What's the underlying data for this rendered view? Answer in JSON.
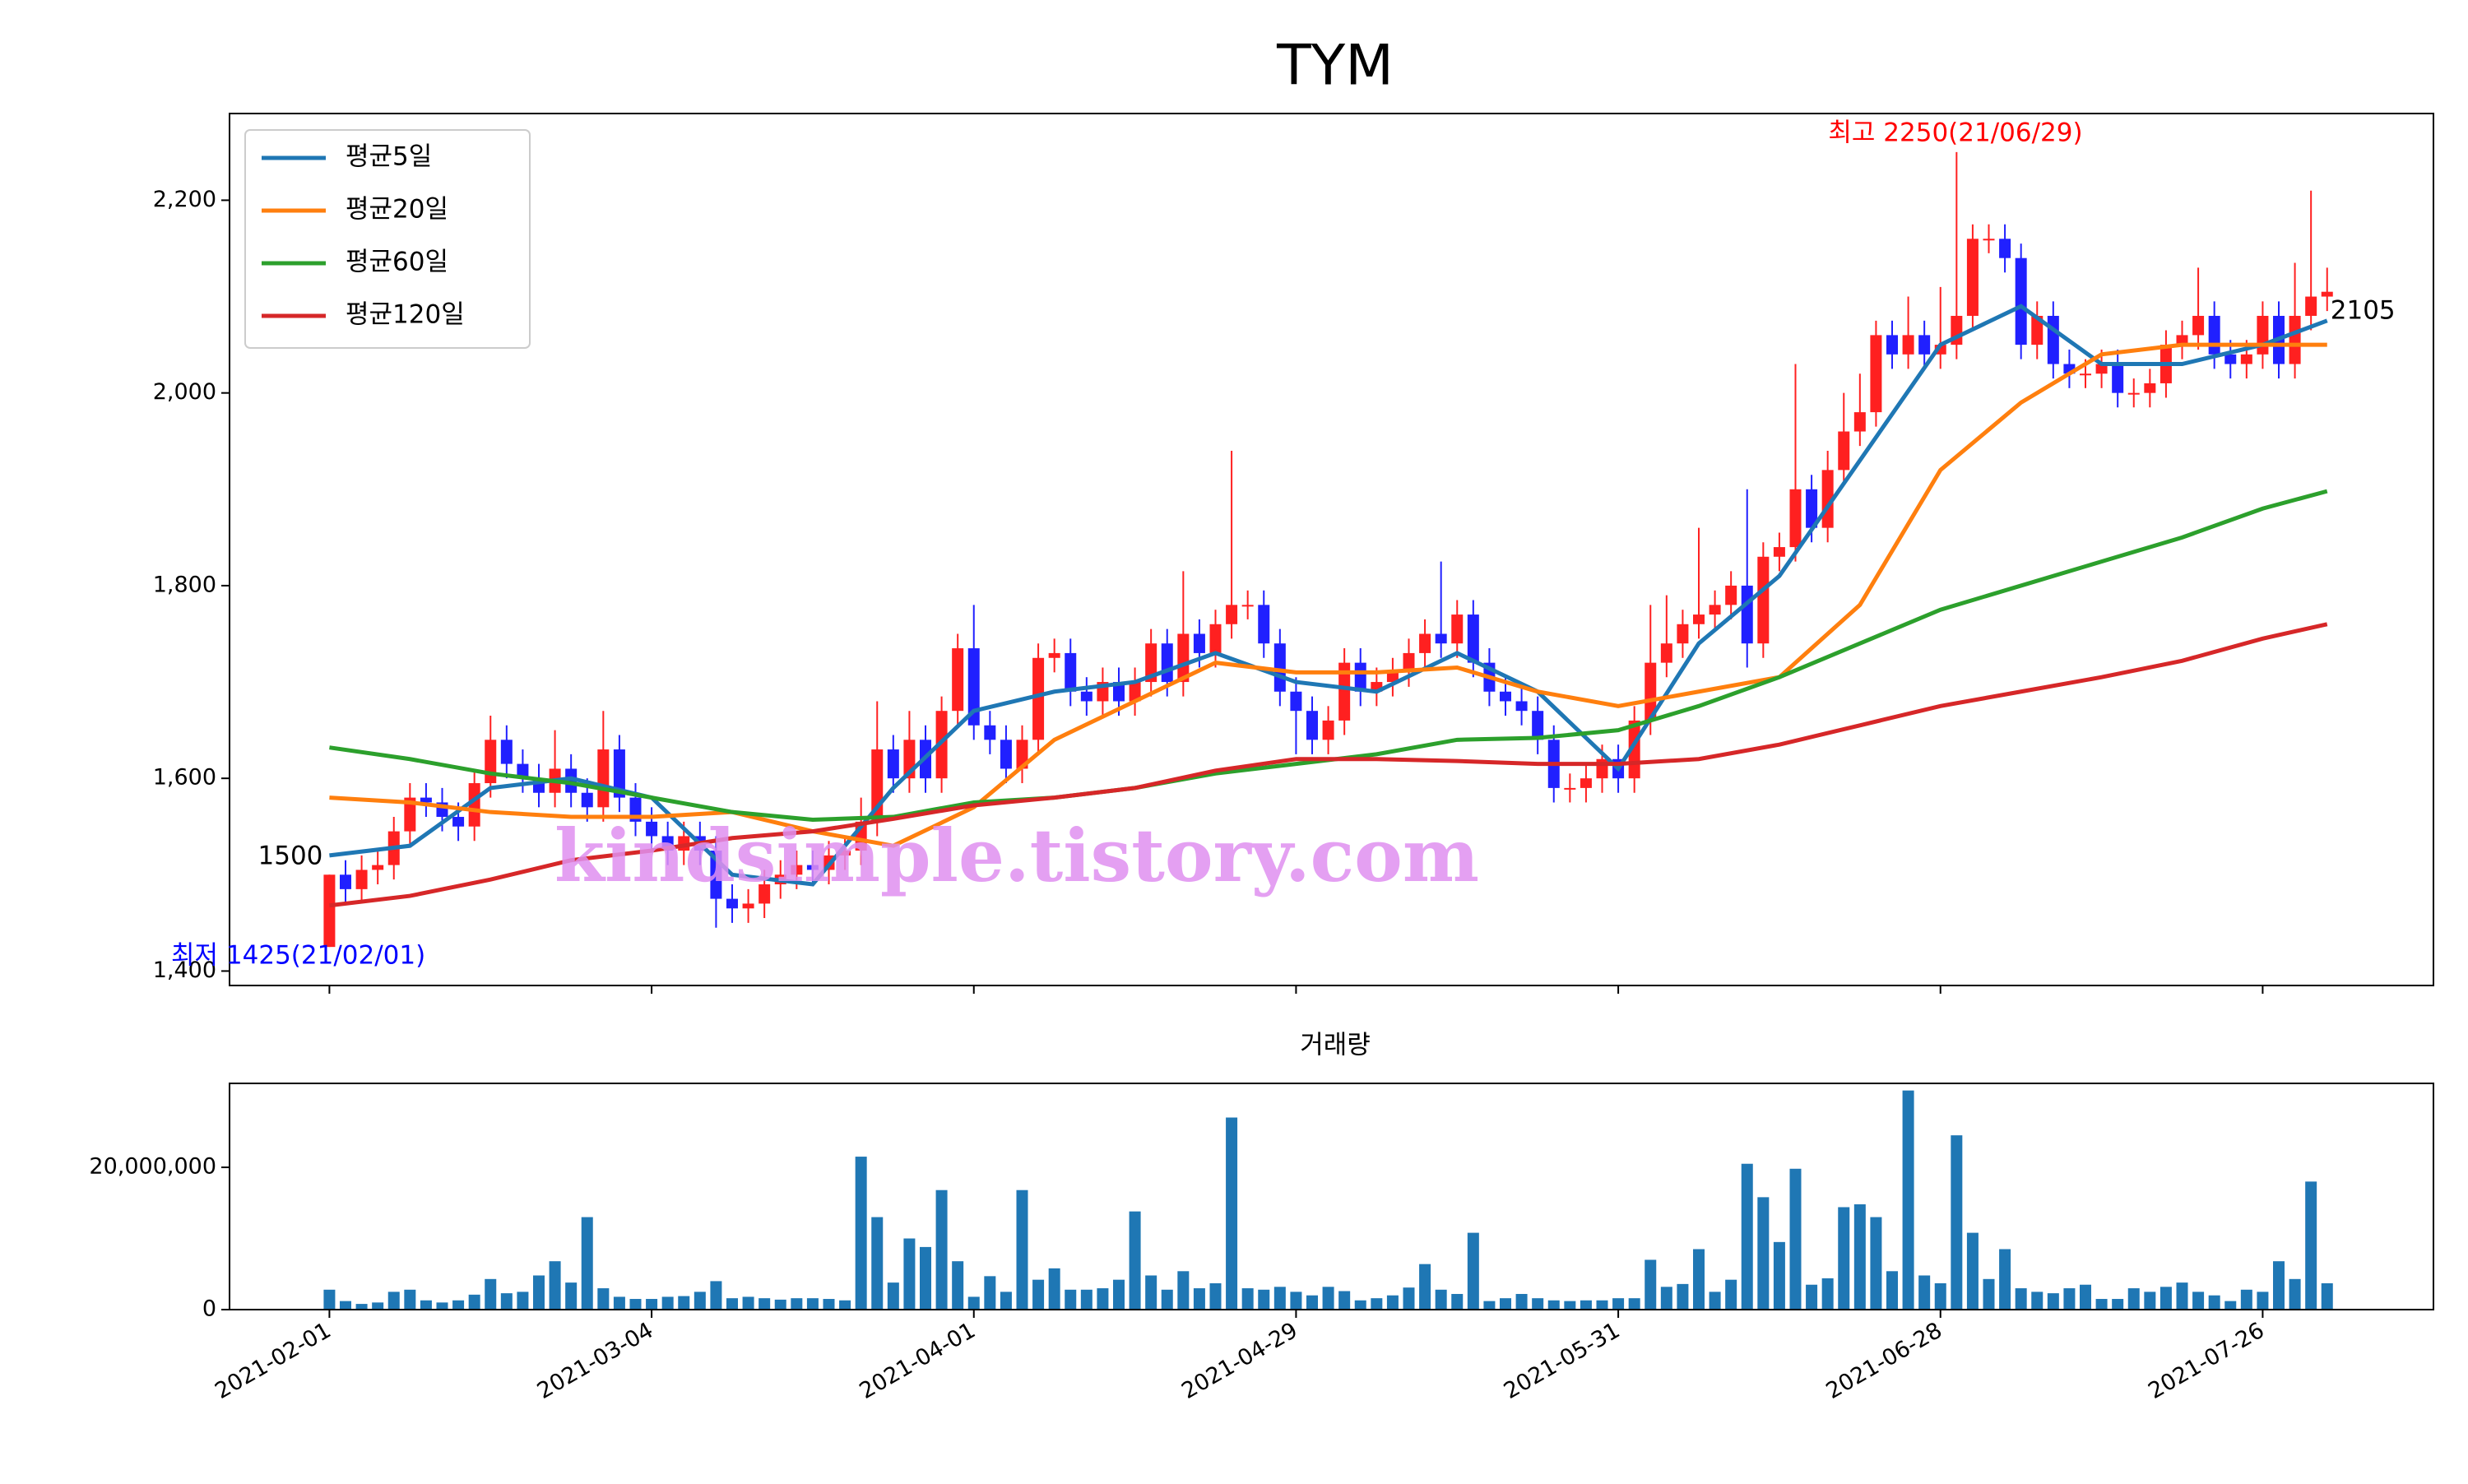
{
  "chart_data": [
    {
      "type": "candlestick",
      "title": "TYM",
      "xlim": [
        -6.2,
        130.6
      ],
      "ylim": [
        1385,
        2290
      ],
      "yticks": [
        {
          "value": 1400,
          "label": "1,400"
        },
        {
          "value": 1600,
          "label": "1,600"
        },
        {
          "value": 1800,
          "label": "1,800"
        },
        {
          "value": 2000,
          "label": "2,000"
        },
        {
          "value": 2200,
          "label": "2,200"
        }
      ],
      "xticks": [
        0,
        20,
        40,
        60,
        80,
        100,
        120
      ],
      "up_color": "#ff2020",
      "down_color": "#2020ff",
      "open": [
        1425,
        1500,
        1485,
        1505,
        1510,
        1545,
        1580,
        1575,
        1560,
        1550,
        1595,
        1640,
        1615,
        1600,
        1585,
        1610,
        1585,
        1570,
        1630,
        1580,
        1555,
        1540,
        1525,
        1540,
        1525,
        1475,
        1465,
        1470,
        1490,
        1500,
        1510,
        1505,
        1520,
        1525,
        1555,
        1630,
        1600,
        1640,
        1600,
        1670,
        1735,
        1655,
        1640,
        1610,
        1640,
        1725,
        1730,
        1690,
        1680,
        1700,
        1680,
        1700,
        1740,
        1700,
        1750,
        1730,
        1760,
        1780,
        1780,
        1740,
        1690,
        1670,
        1640,
        1660,
        1720,
        1690,
        1700,
        1710,
        1730,
        1750,
        1740,
        1770,
        1720,
        1690,
        1680,
        1670,
        1640,
        1590,
        1590,
        1600,
        1620,
        1600,
        1660,
        1720,
        1740,
        1760,
        1770,
        1780,
        1800,
        1740,
        1830,
        1840,
        1900,
        1860,
        1920,
        1960,
        1980,
        2060,
        2040,
        2060,
        2040,
        2050,
        2080,
        2160,
        2160,
        2140,
        2050,
        2080,
        2030,
        2020,
        2020,
        2030,
        2000,
        2000,
        2010,
        2050,
        2060,
        2080,
        2040,
        2030,
        2040,
        2080,
        2030,
        2080,
        2100
      ],
      "high": [
        1500,
        1515,
        1520,
        1525,
        1560,
        1595,
        1595,
        1590,
        1575,
        1610,
        1665,
        1655,
        1630,
        1615,
        1650,
        1625,
        1600,
        1670,
        1645,
        1595,
        1570,
        1555,
        1555,
        1555,
        1540,
        1490,
        1485,
        1505,
        1515,
        1525,
        1525,
        1535,
        1540,
        1580,
        1680,
        1645,
        1670,
        1655,
        1685,
        1750,
        1780,
        1670,
        1655,
        1655,
        1740,
        1745,
        1745,
        1705,
        1715,
        1715,
        1715,
        1755,
        1755,
        1815,
        1765,
        1775,
        1940,
        1795,
        1795,
        1755,
        1705,
        1685,
        1675,
        1735,
        1735,
        1715,
        1725,
        1745,
        1765,
        1825,
        1785,
        1785,
        1735,
        1705,
        1695,
        1685,
        1655,
        1605,
        1615,
        1635,
        1635,
        1675,
        1780,
        1790,
        1775,
        1860,
        1795,
        1815,
        1900,
        1845,
        1855,
        2030,
        1915,
        1940,
        2000,
        2020,
        2075,
        2075,
        2100,
        2075,
        2110,
        2250,
        2175,
        2175,
        2175,
        2155,
        2095,
        2095,
        2045,
        2035,
        2045,
        2045,
        2015,
        2025,
        2065,
        2075,
        2130,
        2095,
        2055,
        2055,
        2095,
        2095,
        2135,
        2210,
        2130
      ],
      "low": [
        1425,
        1470,
        1470,
        1490,
        1495,
        1530,
        1560,
        1545,
        1535,
        1535,
        1580,
        1600,
        1585,
        1570,
        1570,
        1570,
        1555,
        1555,
        1565,
        1540,
        1525,
        1510,
        1510,
        1510,
        1445,
        1450,
        1450,
        1455,
        1475,
        1485,
        1490,
        1490,
        1505,
        1510,
        1540,
        1585,
        1585,
        1585,
        1585,
        1655,
        1640,
        1625,
        1595,
        1595,
        1625,
        1710,
        1675,
        1665,
        1665,
        1665,
        1665,
        1685,
        1685,
        1685,
        1715,
        1715,
        1745,
        1765,
        1725,
        1675,
        1625,
        1625,
        1625,
        1645,
        1675,
        1675,
        1685,
        1695,
        1715,
        1725,
        1725,
        1705,
        1675,
        1665,
        1655,
        1625,
        1575,
        1575,
        1575,
        1585,
        1585,
        1585,
        1645,
        1705,
        1725,
        1745,
        1755,
        1765,
        1715,
        1725,
        1815,
        1825,
        1845,
        1845,
        1905,
        1945,
        1965,
        2025,
        2025,
        2025,
        2025,
        2035,
        2065,
        2145,
        2125,
        2035,
        2035,
        2015,
        2005,
        2005,
        2005,
        1985,
        1985,
        1985,
        1995,
        2035,
        2045,
        2025,
        2015,
        2015,
        2025,
        2015,
        2015,
        2065,
        2085
      ],
      "close": [
        1500,
        1485,
        1505,
        1510,
        1545,
        1580,
        1575,
        1560,
        1550,
        1595,
        1640,
        1615,
        1600,
        1585,
        1610,
        1585,
        1570,
        1630,
        1580,
        1555,
        1540,
        1525,
        1540,
        1525,
        1475,
        1465,
        1470,
        1490,
        1500,
        1510,
        1505,
        1520,
        1525,
        1555,
        1630,
        1600,
        1640,
        1600,
        1670,
        1735,
        1655,
        1640,
        1610,
        1640,
        1725,
        1730,
        1690,
        1680,
        1700,
        1680,
        1700,
        1740,
        1700,
        1750,
        1730,
        1760,
        1780,
        1780,
        1740,
        1690,
        1670,
        1640,
        1660,
        1720,
        1690,
        1700,
        1710,
        1730,
        1750,
        1740,
        1770,
        1720,
        1690,
        1680,
        1670,
        1640,
        1590,
        1590,
        1600,
        1620,
        1600,
        1660,
        1720,
        1740,
        1760,
        1770,
        1780,
        1800,
        1740,
        1830,
        1840,
        1900,
        1860,
        1920,
        1960,
        1980,
        2060,
        2040,
        2060,
        2040,
        2050,
        2080,
        2160,
        2160,
        2140,
        2050,
        2080,
        2030,
        2020,
        2020,
        2030,
        2000,
        2000,
        2010,
        2050,
        2060,
        2080,
        2040,
        2030,
        2040,
        2080,
        2030,
        2080,
        2100,
        2105
      ],
      "series": [
        {
          "name": "평균5일",
          "color": "#1f77b4",
          "x": [
            0,
            5,
            10,
            15,
            20,
            25,
            30,
            35,
            40,
            45,
            50,
            55,
            60,
            65,
            70,
            75,
            80,
            85,
            90,
            95,
            100,
            105,
            110,
            115,
            120,
            124
          ],
          "values": [
            1520,
            1530,
            1590,
            1600,
            1580,
            1500,
            1490,
            1590,
            1670,
            1690,
            1700,
            1730,
            1700,
            1690,
            1730,
            1690,
            1610,
            1740,
            1810,
            1930,
            2050,
            2090,
            2030,
            2030,
            2050,
            2075
          ]
        },
        {
          "name": "평균20일",
          "color": "#ff7f0e",
          "x": [
            0,
            5,
            10,
            15,
            20,
            25,
            30,
            35,
            40,
            45,
            50,
            55,
            60,
            65,
            70,
            75,
            80,
            85,
            90,
            95,
            100,
            105,
            110,
            115,
            120,
            124
          ],
          "values": [
            1580,
            1575,
            1565,
            1560,
            1560,
            1565,
            1545,
            1530,
            1570,
            1640,
            1680,
            1720,
            1710,
            1710,
            1715,
            1690,
            1675,
            1690,
            1705,
            1780,
            1920,
            1990,
            2040,
            2050,
            2050,
            2050
          ]
        },
        {
          "name": "평균60일",
          "color": "#2ca02c",
          "x": [
            0,
            5,
            10,
            15,
            20,
            25,
            30,
            35,
            40,
            45,
            50,
            55,
            60,
            65,
            70,
            75,
            80,
            85,
            90,
            95,
            100,
            105,
            110,
            115,
            120,
            124
          ],
          "values": [
            1632,
            1620,
            1605,
            1595,
            1580,
            1565,
            1557,
            1560,
            1575,
            1580,
            1590,
            1605,
            1615,
            1625,
            1640,
            1642,
            1650,
            1675,
            1705,
            1740,
            1775,
            1800,
            1825,
            1850,
            1880,
            1898
          ]
        },
        {
          "name": "평균120일",
          "color": "#d62728",
          "x": [
            0,
            5,
            10,
            15,
            20,
            25,
            30,
            35,
            40,
            45,
            50,
            55,
            60,
            65,
            70,
            75,
            80,
            85,
            90,
            95,
            100,
            105,
            110,
            115,
            120,
            124
          ],
          "values": [
            1468,
            1478,
            1495,
            1515,
            1525,
            1538,
            1545,
            1558,
            1572,
            1580,
            1590,
            1608,
            1620,
            1620,
            1618,
            1615,
            1615,
            1620,
            1635,
            1655,
            1675,
            1690,
            1705,
            1722,
            1745,
            1760
          ]
        }
      ],
      "legend": "upper left",
      "annotations": [
        "최고 2250(21/06/29)",
        "최저 1425(21/02/01)",
        "1500",
        "2105"
      ],
      "watermark": "kindsimple.tistory.com"
    },
    {
      "type": "bar",
      "title": "거래량",
      "color": "#1f77b4",
      "xlim": [
        -6.2,
        130.6
      ],
      "ylim": [
        0,
        31800000
      ],
      "yticks": [
        0,
        {
          "value": 20000000,
          "label": "20,000,000"
        }
      ],
      "xticks": [
        {
          "value": 0,
          "label": "2021-02-01"
        },
        {
          "value": 20,
          "label": "2021-03-04"
        },
        {
          "value": 40,
          "label": "2021-04-01"
        },
        {
          "value": 60,
          "label": "2021-04-29"
        },
        {
          "value": 80,
          "label": "2021-05-31"
        },
        {
          "value": 100,
          "label": "2021-06-28"
        },
        {
          "value": 120,
          "label": "2021-07-26"
        }
      ],
      "values": [
        2800000,
        1200000,
        800000,
        1000000,
        2500000,
        2800000,
        1300000,
        1000000,
        1300000,
        2100000,
        4300000,
        2300000,
        2500000,
        4800000,
        6800000,
        3800000,
        13000000,
        3000000,
        1800000,
        1500000,
        1500000,
        1800000,
        1900000,
        2500000,
        4000000,
        1600000,
        1800000,
        1600000,
        1400000,
        1600000,
        1600000,
        1500000,
        1300000,
        21500000,
        13000000,
        3800000,
        10000000,
        8800000,
        16800000,
        6800000,
        1800000,
        4700000,
        2500000,
        16800000,
        4200000,
        5800000,
        2800000,
        2800000,
        3000000,
        4200000,
        13800000,
        4800000,
        2800000,
        5400000,
        3000000,
        3700000,
        27000000,
        3000000,
        2800000,
        3200000,
        2500000,
        2000000,
        3200000,
        2600000,
        1300000,
        1600000,
        2000000,
        3100000,
        6400000,
        2800000,
        2200000,
        10800000,
        1200000,
        1600000,
        2200000,
        1600000,
        1300000,
        1200000,
        1300000,
        1300000,
        1600000,
        1600000,
        7000000,
        3200000,
        3600000,
        8500000,
        2500000,
        4200000,
        20500000,
        15800000,
        9500000,
        19800000,
        3500000,
        4400000,
        14400000,
        14800000,
        13000000,
        5400000,
        30800000,
        4800000,
        3700000,
        24500000,
        10800000,
        4300000,
        8500000,
        3000000,
        2500000,
        2300000,
        3000000,
        3500000,
        1500000,
        1500000,
        3000000,
        2500000,
        3200000,
        3800000,
        2500000,
        2000000,
        1200000,
        2800000,
        2500000,
        6800000,
        4300000,
        18000000,
        3700000
      ]
    }
  ]
}
